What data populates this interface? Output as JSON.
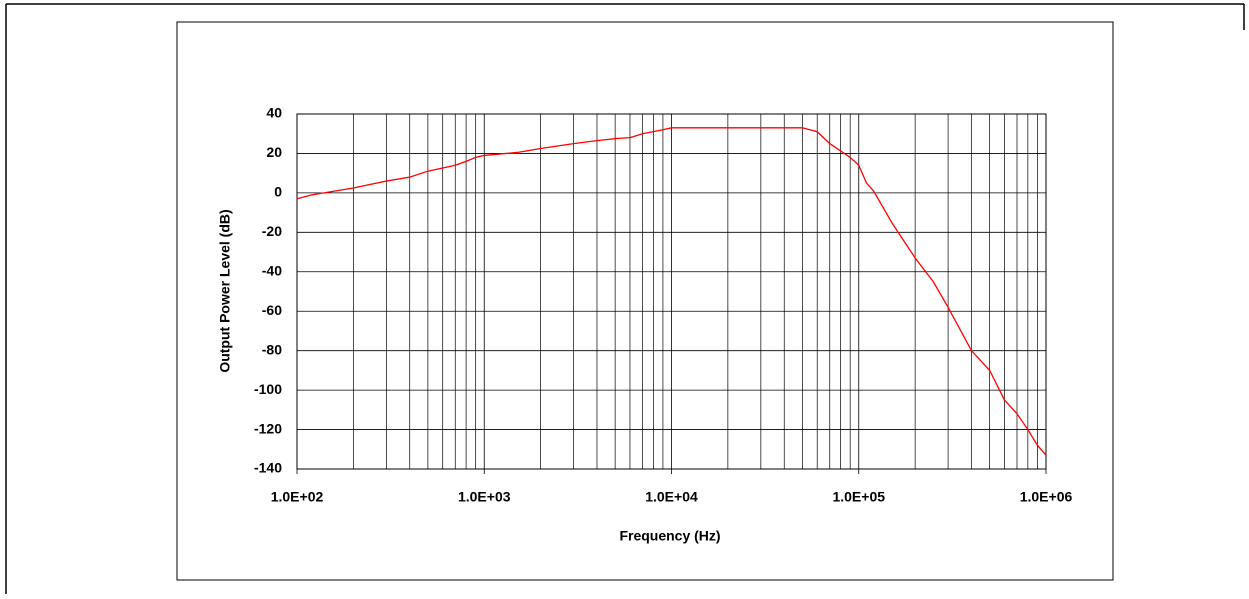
{
  "chart_data": {
    "type": "line",
    "xlabel": "Frequency (Hz)",
    "ylabel": "Output Power Level (dB)",
    "x": [
      100,
      120,
      150,
      200,
      300,
      400,
      500,
      700,
      800,
      900,
      1000,
      1500,
      2000,
      3000,
      4000,
      5000,
      6000,
      7000,
      9000,
      10000,
      20000,
      50000,
      60000,
      70000,
      90000,
      100000,
      110000,
      120000,
      150000,
      200000,
      250000,
      300000,
      400000,
      500000,
      600000,
      700000,
      800000,
      900000,
      1000000
    ],
    "values": [
      -3,
      -1,
      0.5,
      2.5,
      6,
      8,
      11,
      14,
      16,
      18,
      19,
      20.5,
      22.5,
      25,
      26.5,
      27.5,
      28,
      30,
      32,
      33,
      33,
      33,
      31,
      25,
      18,
      14,
      5,
      1,
      -15,
      -33,
      -45,
      -58,
      -80,
      -90,
      -105,
      -112,
      -120,
      -128,
      -133
    ],
    "color": "#ff0000",
    "xscale": "log",
    "xlim": [
      100,
      1000000
    ],
    "xticks": [
      {
        "value": 100,
        "label": "1.0E+02"
      },
      {
        "value": 1000,
        "label": "1.0E+03"
      },
      {
        "value": 10000,
        "label": "1.0E+04"
      },
      {
        "value": 100000,
        "label": "1.0E+05"
      },
      {
        "value": 1000000,
        "label": "1.0E+06"
      }
    ],
    "ylim": [
      -140,
      40
    ],
    "yticks": [
      40,
      20,
      0,
      -20,
      -40,
      -60,
      -80,
      -100,
      -120,
      -140
    ],
    "grid": true
  }
}
